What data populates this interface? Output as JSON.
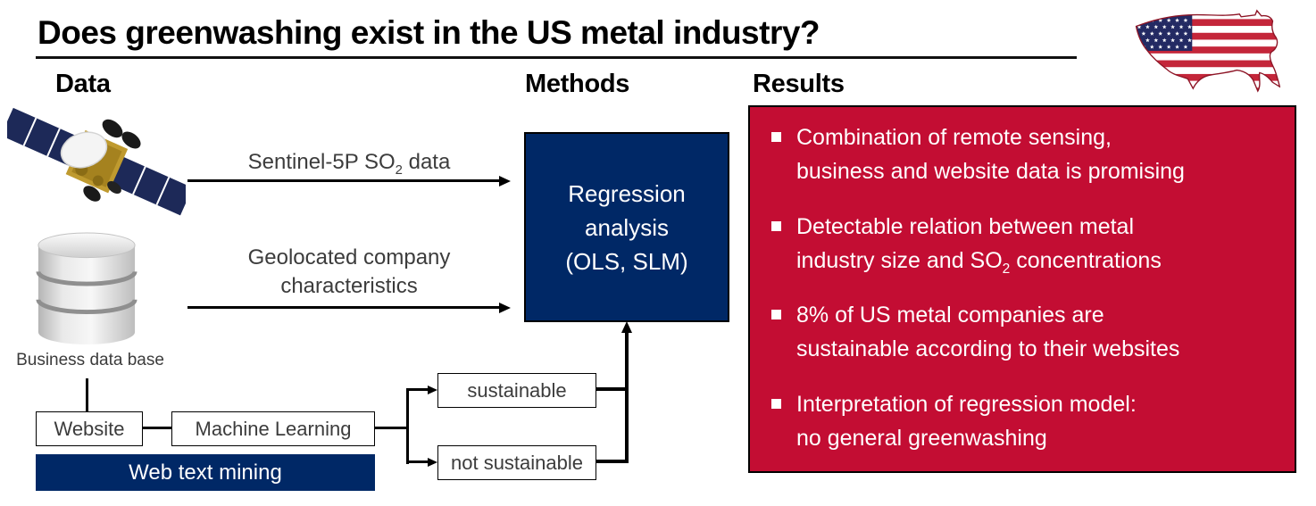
{
  "title": "Does greenwashing exist in the US metal industry?",
  "columns": {
    "data_header": "Data",
    "methods_header": "Methods",
    "results_header": "Results"
  },
  "colors": {
    "navy": "#002866",
    "red": "#C30D33",
    "label_gray": "#3C3C3C",
    "flag_blue": "#232A63",
    "flag_red": "#C4263A"
  },
  "icons": {
    "satellite": "satellite-icon",
    "database": "database-icon",
    "us_flag_map": "us-flag-map-icon",
    "bullet": "bullet-square-icon"
  },
  "data_column": {
    "satellite_arrow_label": {
      "pre": "Sentinel-5P SO",
      "sub": "2",
      "post": " data"
    },
    "company_arrow_label_lines": [
      "Geolocated company",
      "characteristics"
    ],
    "database_caption": "Business data base",
    "website_box": "Website",
    "machine_learning_box": "Machine Learning",
    "web_text_mining_box": "Web text mining",
    "sustainable_box": "sustainable",
    "not_sustainable_box": "not sustainable"
  },
  "methods": {
    "box_lines": [
      "Regression",
      "analysis",
      "(OLS, SLM)"
    ]
  },
  "results": {
    "bullets": [
      {
        "segments": [
          {
            "t": "Combination of remote sensing,"
          },
          {
            "br": true
          },
          {
            "t": "business and website data is promising"
          }
        ]
      },
      {
        "segments": [
          {
            "t": "Detectable relation between metal"
          },
          {
            "br": true
          },
          {
            "t": "industry size and SO"
          },
          {
            "t": "2",
            "sub": true
          },
          {
            "t": " concentrations"
          }
        ]
      },
      {
        "segments": [
          {
            "t": "8% of US metal companies are"
          },
          {
            "br": true
          },
          {
            "t": "sustainable according to their websites"
          }
        ]
      },
      {
        "segments": [
          {
            "t": "Interpretation of regression model:"
          },
          {
            "br": true
          },
          {
            "t": "no general greenwashing"
          }
        ]
      }
    ]
  }
}
